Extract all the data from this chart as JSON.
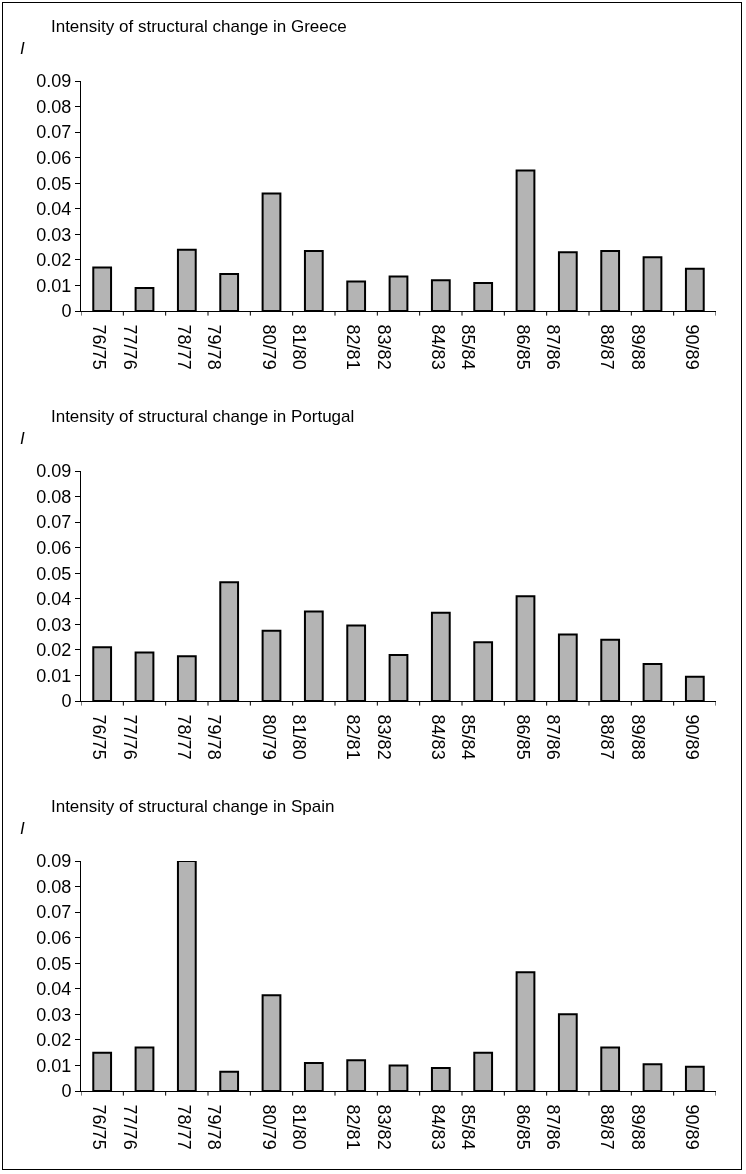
{
  "chart_data": [
    {
      "type": "bar",
      "title": "Intensity of structural change in Greece",
      "ylabel": "I",
      "categories": [
        "76/75",
        "77/76",
        "78/77",
        "79/78",
        "80/79",
        "81/80",
        "82/81",
        "83/82",
        "84/83",
        "85/84",
        "86/85",
        "87/86",
        "88/87",
        "89/88",
        "90/89"
      ],
      "values": [
        0.017,
        0.009,
        0.024,
        0.0145,
        0.046,
        0.0235,
        0.0115,
        0.0135,
        0.012,
        0.011,
        0.055,
        0.023,
        0.0235,
        0.021,
        0.0165
      ],
      "color": "#b4b4b4",
      "ylim": [
        0,
        0.09
      ],
      "yticks": [
        0,
        0.01,
        0.02,
        0.03,
        0.04,
        0.05,
        0.06,
        0.07,
        0.08,
        0.09
      ],
      "grid": false,
      "legend": false
    },
    {
      "type": "bar",
      "title": "Intensity of structural change in Portugal",
      "ylabel": "I",
      "categories": [
        "76/75",
        "77/76",
        "78/77",
        "79/78",
        "80/79",
        "81/80",
        "82/81",
        "83/82",
        "84/83",
        "85/84",
        "86/85",
        "87/86",
        "88/87",
        "89/88",
        "90/89"
      ],
      "values": [
        0.021,
        0.019,
        0.0175,
        0.0465,
        0.0275,
        0.035,
        0.0295,
        0.018,
        0.0345,
        0.023,
        0.041,
        0.026,
        0.024,
        0.0145,
        0.0095
      ],
      "color": "#b4b4b4",
      "ylim": [
        0,
        0.09
      ],
      "yticks": [
        0,
        0.01,
        0.02,
        0.03,
        0.04,
        0.05,
        0.06,
        0.07,
        0.08,
        0.09
      ],
      "grid": false,
      "legend": false
    },
    {
      "type": "bar",
      "title": "Intensity of structural change in Spain",
      "ylabel": "I",
      "categories": [
        "76/75",
        "77/76",
        "78/77",
        "79/78",
        "80/79",
        "81/80",
        "82/81",
        "83/82",
        "84/83",
        "85/84",
        "86/85",
        "87/86",
        "88/87",
        "89/88",
        "90/89"
      ],
      "values": [
        0.015,
        0.017,
        0.09,
        0.0075,
        0.0375,
        0.011,
        0.012,
        0.01,
        0.009,
        0.015,
        0.0465,
        0.03,
        0.017,
        0.0105,
        0.0095
      ],
      "color": "#b4b4b4",
      "ylim": [
        0,
        0.09
      ],
      "yticks": [
        0,
        0.01,
        0.02,
        0.03,
        0.04,
        0.05,
        0.06,
        0.07,
        0.08,
        0.09
      ],
      "grid": false,
      "legend": false
    }
  ]
}
